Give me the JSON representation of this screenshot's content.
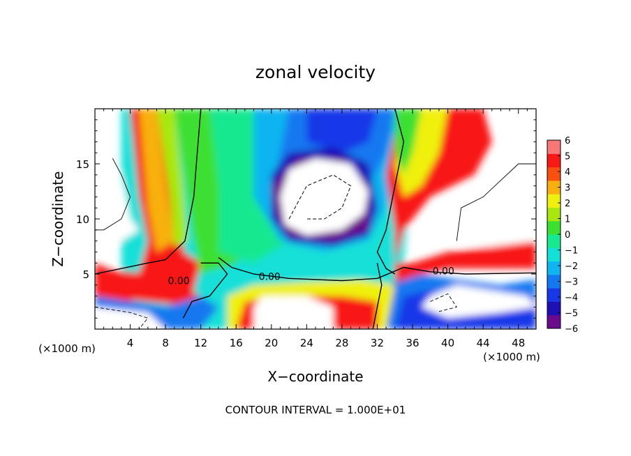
{
  "chart_data": {
    "type": "heatmap",
    "title": "zonal velocity",
    "xlabel": "X−coordinate",
    "ylabel": "Z−coordinate",
    "x_unit_left": "(×1000 m)",
    "x_unit_right": "(×1000 m)",
    "xlim": [
      0,
      50
    ],
    "ylim": [
      0,
      20
    ],
    "x_ticks": [
      4,
      8,
      12,
      16,
      20,
      24,
      28,
      32,
      36,
      40,
      44,
      48
    ],
    "y_ticks": [
      5,
      10,
      15
    ],
    "colorbar": {
      "ticks": [
        6,
        5,
        4,
        3,
        2,
        1,
        0,
        -1,
        -2,
        -3,
        -4,
        -5,
        -6
      ],
      "tick_labels": [
        "6",
        "5",
        "4",
        "3",
        "2",
        "1",
        "0",
        "−1",
        "−2",
        "−3",
        "−4",
        "−5",
        "−6"
      ],
      "range": [
        -6,
        6
      ],
      "colors": [
        "#6a0a8c",
        "#1e10b4",
        "#1838e8",
        "#1478f0",
        "#10b4f0",
        "#14e0d8",
        "#18e890",
        "#3ce030",
        "#a8e810",
        "#f0f010",
        "#f8b010",
        "#f85010",
        "#f81818",
        "#f87878"
      ]
    },
    "contour_labels": [
      {
        "text": "0.00",
        "x": 9.5,
        "y": 4.2
      },
      {
        "text": "0.00",
        "x": 19.8,
        "y": 4.6
      },
      {
        "text": "0.00",
        "x": 39.5,
        "y": 5.1
      }
    ],
    "footer": "CONTOUR INTERVAL = 1.000E+01",
    "grid": false,
    "legend": "colorbar-right"
  }
}
